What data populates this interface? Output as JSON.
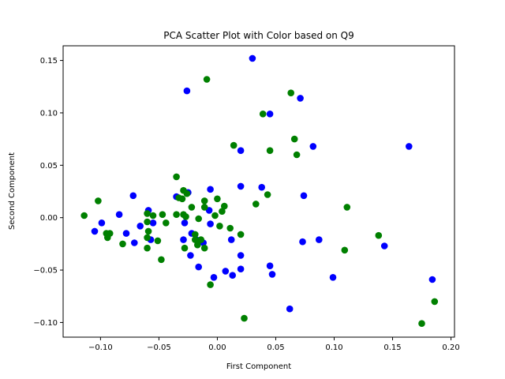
{
  "chart_data": {
    "type": "scatter",
    "title": "PCA Scatter Plot with Color based on Q9",
    "xlabel": "First Component",
    "ylabel": "Second Component",
    "xlim": [
      -0.132,
      0.203
    ],
    "ylim": [
      -0.114,
      0.164
    ],
    "xticks": [
      -0.1,
      -0.05,
      0.0,
      0.05,
      0.1,
      0.15,
      0.2
    ],
    "xtick_labels": [
      "−0.10",
      "−0.05",
      "0.00",
      "0.05",
      "0.10",
      "0.15",
      "0.20"
    ],
    "yticks": [
      -0.1,
      -0.05,
      0.0,
      0.05,
      0.1,
      0.15
    ],
    "ytick_labels": [
      "−0.10",
      "−0.05",
      "0.00",
      "0.05",
      "0.10",
      "0.15"
    ],
    "grid": false,
    "series": [
      {
        "color": "#0000ff",
        "points": [
          [
            0.03,
            0.152
          ],
          [
            -0.026,
            0.121
          ],
          [
            0.071,
            0.114
          ],
          [
            0.045,
            0.099
          ],
          [
            0.164,
            0.068
          ],
          [
            0.082,
            0.068
          ],
          [
            0.02,
            0.064
          ],
          [
            -0.025,
            0.024
          ],
          [
            0.02,
            0.03
          ],
          [
            0.038,
            0.029
          ],
          [
            -0.006,
            0.027
          ],
          [
            -0.035,
            0.02
          ],
          [
            0.074,
            0.021
          ],
          [
            -0.072,
            0.021
          ],
          [
            -0.059,
            0.007
          ],
          [
            -0.007,
            0.007
          ],
          [
            -0.084,
            0.003
          ],
          [
            -0.055,
            -0.005
          ],
          [
            -0.099,
            -0.005
          ],
          [
            -0.028,
            -0.005
          ],
          [
            -0.066,
            -0.008
          ],
          [
            -0.006,
            -0.006
          ],
          [
            -0.078,
            -0.015
          ],
          [
            -0.105,
            -0.013
          ],
          [
            -0.022,
            -0.015
          ],
          [
            -0.029,
            -0.021
          ],
          [
            0.012,
            -0.021
          ],
          [
            -0.057,
            -0.021
          ],
          [
            -0.018,
            -0.021
          ],
          [
            -0.071,
            -0.024
          ],
          [
            0.073,
            -0.023
          ],
          [
            0.087,
            -0.021
          ],
          [
            -0.012,
            -0.024
          ],
          [
            -0.023,
            -0.036
          ],
          [
            0.02,
            -0.036
          ],
          [
            0.143,
            -0.027
          ],
          [
            -0.016,
            -0.047
          ],
          [
            0.045,
            -0.046
          ],
          [
            0.02,
            -0.049
          ],
          [
            0.007,
            -0.051
          ],
          [
            0.047,
            -0.054
          ],
          [
            0.013,
            -0.055
          ],
          [
            -0.003,
            -0.057
          ],
          [
            0.099,
            -0.057
          ],
          [
            0.184,
            -0.059
          ],
          [
            0.062,
            -0.087
          ]
        ]
      },
      {
        "color": "#008000",
        "points": [
          [
            -0.009,
            0.132
          ],
          [
            0.063,
            0.119
          ],
          [
            0.039,
            0.099
          ],
          [
            0.066,
            0.075
          ],
          [
            0.014,
            0.069
          ],
          [
            0.045,
            0.064
          ],
          [
            0.068,
            0.06
          ],
          [
            -0.035,
            0.039
          ],
          [
            0.043,
            0.022
          ],
          [
            -0.029,
            0.026
          ],
          [
            -0.026,
            0.023
          ],
          [
            -0.033,
            0.019
          ],
          [
            -0.102,
            0.016
          ],
          [
            -0.011,
            0.016
          ],
          [
            0.0,
            0.018
          ],
          [
            -0.03,
            0.018
          ],
          [
            0.033,
            0.013
          ],
          [
            0.111,
            0.01
          ],
          [
            0.006,
            0.011
          ],
          [
            -0.022,
            0.01
          ],
          [
            -0.011,
            0.01
          ],
          [
            0.004,
            0.006
          ],
          [
            -0.06,
            0.004
          ],
          [
            -0.055,
            0.002
          ],
          [
            -0.114,
            0.002
          ],
          [
            -0.047,
            0.003
          ],
          [
            -0.035,
            0.003
          ],
          [
            -0.029,
            0.003
          ],
          [
            -0.027,
            0.001
          ],
          [
            -0.002,
            0.002
          ],
          [
            -0.016,
            -0.001
          ],
          [
            -0.044,
            -0.005
          ],
          [
            -0.06,
            -0.004
          ],
          [
            0.002,
            -0.008
          ],
          [
            0.011,
            -0.01
          ],
          [
            -0.095,
            -0.015
          ],
          [
            -0.092,
            -0.015
          ],
          [
            -0.059,
            -0.013
          ],
          [
            -0.019,
            -0.016
          ],
          [
            0.02,
            -0.016
          ],
          [
            -0.094,
            -0.019
          ],
          [
            -0.06,
            -0.019
          ],
          [
            -0.051,
            -0.022
          ],
          [
            -0.019,
            -0.021
          ],
          [
            0.138,
            -0.017
          ],
          [
            -0.014,
            -0.021
          ],
          [
            -0.081,
            -0.025
          ],
          [
            -0.017,
            -0.026
          ],
          [
            -0.06,
            -0.029
          ],
          [
            -0.028,
            -0.029
          ],
          [
            -0.011,
            -0.029
          ],
          [
            0.109,
            -0.031
          ],
          [
            -0.048,
            -0.04
          ],
          [
            -0.006,
            -0.064
          ],
          [
            0.023,
            -0.096
          ],
          [
            0.186,
            -0.08
          ],
          [
            0.175,
            -0.101
          ]
        ]
      }
    ]
  }
}
